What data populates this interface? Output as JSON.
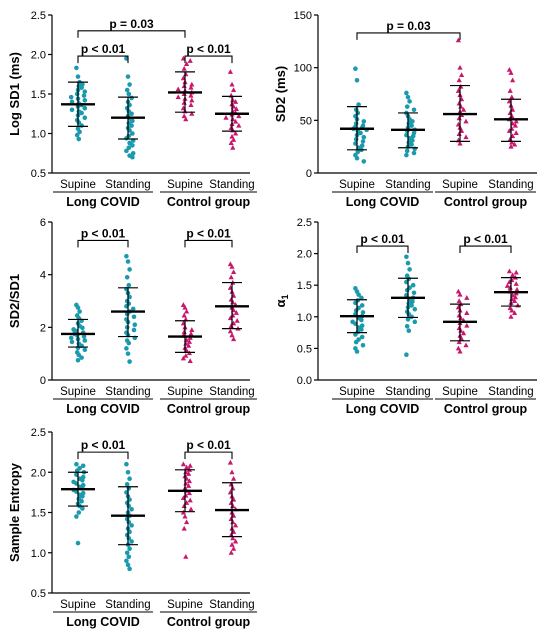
{
  "colors": {
    "long_covid": "#1a9aad",
    "control": "#c8186e",
    "axis": "#000000"
  },
  "chart_data": [
    {
      "type": "scatter",
      "ylabel": "Log SD1 (ms)",
      "ylim": [
        0.5,
        2.5
      ],
      "yticks": [
        "0.5",
        "1.0",
        "1.5",
        "2.0",
        "2.5"
      ],
      "categories": [
        "Supine",
        "Standing",
        "Supine",
        "Standing"
      ],
      "groups": [
        "Long COVID",
        "Control group"
      ],
      "series": [
        {
          "group": "Long COVID",
          "category": "Supine",
          "mean": 1.37,
          "sd_low": 1.09,
          "sd_high": 1.65,
          "points": [
            1.83,
            1.72,
            1.65,
            1.62,
            1.6,
            1.58,
            1.55,
            1.53,
            1.5,
            1.48,
            1.46,
            1.44,
            1.42,
            1.4,
            1.38,
            1.36,
            1.34,
            1.32,
            1.3,
            1.28,
            1.26,
            1.23,
            1.2,
            1.17,
            1.14,
            1.1,
            1.06,
            1.02,
            0.98,
            0.93
          ]
        },
        {
          "group": "Long COVID",
          "category": "Standing",
          "mean": 1.2,
          "sd_low": 0.93,
          "sd_high": 1.46,
          "points": [
            1.95,
            1.72,
            1.62,
            1.55,
            1.5,
            1.45,
            1.4,
            1.36,
            1.32,
            1.28,
            1.25,
            1.22,
            1.19,
            1.16,
            1.13,
            1.1,
            1.07,
            1.04,
            1.0,
            0.97,
            0.94,
            0.91,
            0.88,
            0.85,
            0.82,
            0.78,
            0.75,
            0.72,
            0.7
          ]
        },
        {
          "group": "Control group",
          "category": "Supine",
          "mean": 1.52,
          "sd_low": 1.27,
          "sd_high": 1.78,
          "points": [
            1.95,
            1.92,
            1.88,
            1.82,
            1.75,
            1.7,
            1.65,
            1.62,
            1.6,
            1.58,
            1.56,
            1.54,
            1.52,
            1.5,
            1.48,
            1.46,
            1.44,
            1.42,
            1.39,
            1.36,
            1.32,
            1.28,
            1.25,
            1.22,
            1.18
          ]
        },
        {
          "group": "Control group",
          "category": "Standing",
          "mean": 1.25,
          "sd_low": 1.03,
          "sd_high": 1.47,
          "points": [
            1.78,
            1.62,
            1.55,
            1.48,
            1.42,
            1.4,
            1.37,
            1.34,
            1.31,
            1.28,
            1.26,
            1.24,
            1.22,
            1.2,
            1.18,
            1.15,
            1.12,
            1.1,
            1.07,
            1.04,
            1.0,
            0.96,
            0.92,
            0.88,
            0.82
          ]
        }
      ],
      "comparisons": [
        {
          "label": "p = 0.03",
          "from": 0,
          "to": 2,
          "y": 2.3
        },
        {
          "label": "p < 0.01",
          "from": 0,
          "to": 1,
          "y": 1.98
        },
        {
          "label": "p < 0.01",
          "from": 2,
          "to": 3,
          "y": 1.98
        }
      ]
    },
    {
      "type": "scatter",
      "ylabel": "SD2 (ms)",
      "ylim": [
        0,
        150
      ],
      "yticks": [
        "0",
        "50",
        "100",
        "150"
      ],
      "categories": [
        "Supine",
        "Standing",
        "Supine",
        "Standing"
      ],
      "groups": [
        "Long COVID",
        "Control group"
      ],
      "series": [
        {
          "group": "Long COVID",
          "category": "Supine",
          "mean": 42,
          "sd_low": 22,
          "sd_high": 63,
          "points": [
            99,
            88,
            65,
            60,
            57,
            54,
            51,
            49,
            47,
            45,
            44,
            43,
            42,
            41,
            40,
            38,
            36,
            34,
            32,
            30,
            28,
            26,
            24,
            22,
            20,
            17,
            14,
            11
          ]
        },
        {
          "group": "Long COVID",
          "category": "Standing",
          "mean": 41,
          "sd_low": 24,
          "sd_high": 57,
          "points": [
            76,
            72,
            68,
            63,
            60,
            57,
            54,
            51,
            49,
            47,
            45,
            43,
            41,
            40,
            38,
            36,
            35,
            33,
            31,
            29,
            27,
            25,
            23,
            21,
            19,
            17
          ]
        },
        {
          "group": "Control group",
          "category": "Supine",
          "mean": 56,
          "sd_low": 30,
          "sd_high": 83,
          "points": [
            126,
            100,
            93,
            88,
            82,
            78,
            74,
            70,
            66,
            63,
            60,
            58,
            55,
            52,
            49,
            46,
            43,
            40,
            37,
            34,
            31,
            28
          ]
        },
        {
          "group": "Control group",
          "category": "Standing",
          "mean": 51,
          "sd_low": 30,
          "sd_high": 70,
          "points": [
            98,
            95,
            88,
            78,
            72,
            68,
            64,
            60,
            57,
            54,
            51,
            49,
            47,
            45,
            42,
            40,
            38,
            35,
            32,
            29,
            27,
            25
          ]
        }
      ],
      "comparisons": [
        {
          "label": "p = 0.03",
          "from": 0,
          "to": 2,
          "y": 133
        }
      ]
    },
    {
      "type": "scatter",
      "ylabel": "SD2/SD1",
      "ylim": [
        0,
        6
      ],
      "yticks": [
        "0",
        "2",
        "4",
        "6"
      ],
      "categories": [
        "Supine",
        "Standing",
        "Supine",
        "Standing"
      ],
      "groups": [
        "Long COVID",
        "Control group"
      ],
      "series": [
        {
          "group": "Long COVID",
          "category": "Supine",
          "mean": 1.75,
          "sd_low": 1.25,
          "sd_high": 2.3,
          "points": [
            2.85,
            2.75,
            2.6,
            2.45,
            2.35,
            2.25,
            2.15,
            2.05,
            1.98,
            1.92,
            1.86,
            1.8,
            1.75,
            1.7,
            1.65,
            1.6,
            1.55,
            1.5,
            1.45,
            1.38,
            1.3,
            1.22,
            1.15,
            1.05,
            0.95,
            0.85,
            0.75
          ]
        },
        {
          "group": "Long COVID",
          "category": "Standing",
          "mean": 2.6,
          "sd_low": 1.65,
          "sd_high": 3.5,
          "points": [
            4.7,
            4.5,
            4.2,
            3.9,
            3.6,
            3.45,
            3.3,
            3.15,
            3.0,
            2.9,
            2.8,
            2.7,
            2.6,
            2.5,
            2.4,
            2.3,
            2.2,
            2.1,
            2.0,
            1.9,
            1.8,
            1.7,
            1.6,
            1.5,
            1.4,
            1.2,
            1.0,
            0.7
          ]
        },
        {
          "group": "Control group",
          "category": "Supine",
          "mean": 1.65,
          "sd_low": 1.05,
          "sd_high": 2.25,
          "points": [
            2.85,
            2.75,
            2.6,
            2.45,
            2.3,
            2.15,
            2.0,
            1.9,
            1.82,
            1.75,
            1.68,
            1.6,
            1.52,
            1.45,
            1.38,
            1.3,
            1.22,
            1.12,
            1.02,
            0.92,
            0.82,
            0.72
          ]
        },
        {
          "group": "Control group",
          "category": "Standing",
          "mean": 2.8,
          "sd_low": 1.95,
          "sd_high": 3.7,
          "points": [
            4.4,
            4.3,
            4.1,
            3.9,
            3.7,
            3.5,
            3.35,
            3.2,
            3.05,
            2.95,
            2.85,
            2.75,
            2.65,
            2.55,
            2.45,
            2.35,
            2.25,
            2.15,
            2.05,
            1.95,
            1.85,
            1.7,
            1.55
          ]
        }
      ],
      "comparisons": [
        {
          "label": "p < 0.01",
          "from": 0,
          "to": 1,
          "y": 5.3
        },
        {
          "label": "p < 0.01",
          "from": 2,
          "to": 3,
          "y": 5.3
        }
      ]
    },
    {
      "type": "scatter",
      "ylabel": "α1",
      "ylim": [
        0,
        2.5
      ],
      "yticks": [
        "0.0",
        "0.5",
        "1.0",
        "1.5",
        "2.0",
        "2.5"
      ],
      "categories": [
        "Supine",
        "Standing",
        "Supine",
        "Standing"
      ],
      "groups": [
        "Long COVID",
        "Control group"
      ],
      "series": [
        {
          "group": "Long COVID",
          "category": "Supine",
          "mean": 1.01,
          "sd_low": 0.75,
          "sd_high": 1.27,
          "points": [
            1.45,
            1.4,
            1.35,
            1.3,
            1.26,
            1.22,
            1.18,
            1.14,
            1.1,
            1.07,
            1.04,
            1.01,
            0.98,
            0.95,
            0.92,
            0.89,
            0.86,
            0.83,
            0.8,
            0.76,
            0.72,
            0.68,
            0.64,
            0.6,
            0.55,
            0.5,
            0.45
          ]
        },
        {
          "group": "Long COVID",
          "category": "Standing",
          "mean": 1.3,
          "sd_low": 0.99,
          "sd_high": 1.61,
          "points": [
            1.95,
            1.85,
            1.75,
            1.65,
            1.6,
            1.55,
            1.5,
            1.46,
            1.42,
            1.38,
            1.34,
            1.3,
            1.27,
            1.24,
            1.21,
            1.18,
            1.15,
            1.12,
            1.08,
            1.04,
            1.0,
            0.96,
            0.92,
            0.85,
            0.78,
            0.4
          ]
        },
        {
          "group": "Control group",
          "category": "Supine",
          "mean": 0.92,
          "sd_low": 0.62,
          "sd_high": 1.2,
          "points": [
            1.4,
            1.35,
            1.3,
            1.25,
            1.2,
            1.15,
            1.1,
            1.06,
            1.02,
            0.98,
            0.94,
            0.9,
            0.86,
            0.82,
            0.78,
            0.74,
            0.7,
            0.65,
            0.6,
            0.55,
            0.5,
            0.45
          ]
        },
        {
          "group": "Control group",
          "category": "Standing",
          "mean": 1.39,
          "sd_low": 1.17,
          "sd_high": 1.62,
          "points": [
            1.72,
            1.7,
            1.66,
            1.62,
            1.58,
            1.55,
            1.52,
            1.49,
            1.46,
            1.43,
            1.4,
            1.37,
            1.34,
            1.31,
            1.28,
            1.25,
            1.22,
            1.18,
            1.14,
            1.1,
            1.06,
            1.0
          ]
        }
      ],
      "comparisons": [
        {
          "label": "p < 0.01",
          "from": 0,
          "to": 1,
          "y": 2.12
        },
        {
          "label": "p < 0.01",
          "from": 2,
          "to": 3,
          "y": 2.12
        }
      ]
    },
    {
      "type": "scatter",
      "ylabel": "Sample Entropy",
      "ylim": [
        0.5,
        2.5
      ],
      "yticks": [
        "0.5",
        "1.0",
        "1.5",
        "2.0",
        "2.5"
      ],
      "categories": [
        "Supine",
        "Standing",
        "Supine",
        "Standing"
      ],
      "groups": [
        "Long COVID",
        "Control group"
      ],
      "series": [
        {
          "group": "Long COVID",
          "category": "Supine",
          "mean": 1.79,
          "sd_low": 1.58,
          "sd_high": 2.0,
          "points": [
            2.1,
            2.08,
            2.05,
            2.02,
            2.0,
            1.97,
            1.94,
            1.92,
            1.9,
            1.88,
            1.86,
            1.84,
            1.82,
            1.8,
            1.78,
            1.76,
            1.74,
            1.72,
            1.7,
            1.67,
            1.64,
            1.61,
            1.58,
            1.55,
            1.5,
            1.45,
            1.12
          ]
        },
        {
          "group": "Long COVID",
          "category": "Standing",
          "mean": 1.46,
          "sd_low": 1.1,
          "sd_high": 1.82,
          "points": [
            2.1,
            2.0,
            1.92,
            1.85,
            1.8,
            1.75,
            1.7,
            1.66,
            1.62,
            1.58,
            1.54,
            1.5,
            1.46,
            1.42,
            1.38,
            1.34,
            1.3,
            1.26,
            1.22,
            1.18,
            1.14,
            1.1,
            1.05,
            1.0,
            0.95,
            0.9,
            0.85,
            0.8
          ]
        },
        {
          "group": "Control group",
          "category": "Supine",
          "mean": 1.77,
          "sd_low": 1.51,
          "sd_high": 2.03,
          "points": [
            2.1,
            2.08,
            2.06,
            2.03,
            2.0,
            1.98,
            1.95,
            1.92,
            1.89,
            1.86,
            1.83,
            1.8,
            1.77,
            1.74,
            1.71,
            1.68,
            1.65,
            1.62,
            1.58,
            1.54,
            1.5,
            1.45,
            1.38,
            1.3,
            0.95
          ]
        },
        {
          "group": "Control group",
          "category": "Standing",
          "mean": 1.53,
          "sd_low": 1.2,
          "sd_high": 1.87,
          "points": [
            2.12,
            2.0,
            1.92,
            1.85,
            1.8,
            1.75,
            1.7,
            1.66,
            1.62,
            1.58,
            1.54,
            1.5,
            1.46,
            1.42,
            1.38,
            1.34,
            1.3,
            1.26,
            1.22,
            1.18,
            1.14,
            1.1,
            1.05,
            1.0
          ]
        }
      ],
      "comparisons": [
        {
          "label": "p < 0.01",
          "from": 0,
          "to": 1,
          "y": 2.25
        },
        {
          "label": "p < 0.01",
          "from": 2,
          "to": 3,
          "y": 2.25
        }
      ]
    }
  ]
}
